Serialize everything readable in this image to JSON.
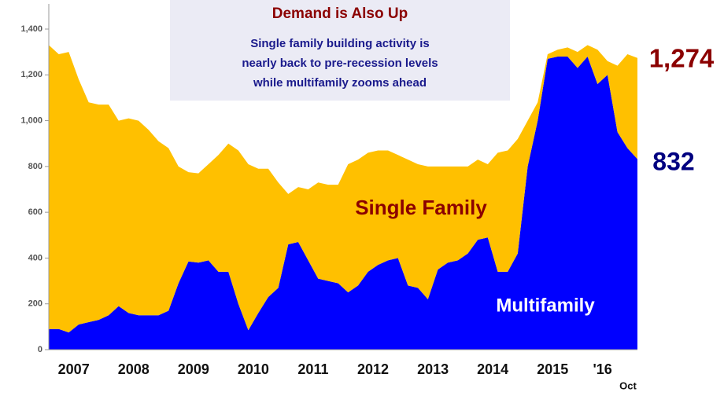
{
  "chart_data": {
    "type": "stacked_area",
    "title": "Demand is Also Up",
    "subtitle": [
      "Single family building activity is",
      "nearly back to pre-recession levels",
      "while multifamily zooms ahead"
    ],
    "categories": [
      null,
      null,
      null,
      "2007",
      null,
      null,
      null,
      null,
      null,
      "2008",
      null,
      null,
      null,
      null,
      null,
      "2009",
      null,
      null,
      null,
      null,
      null,
      "2010",
      null,
      null,
      null,
      null,
      null,
      "2011",
      null,
      null,
      null,
      null,
      null,
      "2012",
      null,
      null,
      null,
      null,
      null,
      "2013",
      null,
      null,
      null,
      null,
      null,
      "2014",
      null,
      null,
      null,
      null,
      null,
      "2015",
      null,
      null,
      null,
      null,
      "'16",
      null,
      null,
      null
    ],
    "x_note": "Oct",
    "series": [
      {
        "name": "Multifamily",
        "color": "#0000ff",
        "values": [
          90,
          90,
          75,
          110,
          120,
          130,
          150,
          190,
          160,
          150,
          150,
          150,
          170,
          290,
          385,
          380,
          390,
          340,
          340,
          200,
          85,
          160,
          230,
          270,
          460,
          470,
          390,
          310,
          300,
          290,
          250,
          280,
          340,
          370,
          390,
          400,
          280,
          270,
          220,
          350,
          380,
          390,
          420,
          480,
          490,
          340,
          340,
          420,
          800,
          1000,
          1270,
          1280,
          1280,
          1230,
          1280,
          1160,
          1200,
          950,
          880,
          832
        ]
      },
      {
        "name": "Single Family",
        "color": "#ffc000",
        "values": [
          1240,
          1200,
          1225,
          1070,
          960,
          940,
          920,
          810,
          850,
          850,
          810,
          760,
          710,
          510,
          390,
          390,
          420,
          510,
          560,
          670,
          725,
          630,
          560,
          460,
          220,
          240,
          310,
          420,
          420,
          430,
          560,
          550,
          520,
          500,
          480,
          450,
          550,
          540,
          580,
          450,
          420,
          410,
          380,
          350,
          320,
          520,
          530,
          500,
          200,
          80,
          20,
          30,
          40,
          70,
          50,
          150,
          60,
          290,
          410,
          442
        ]
      }
    ],
    "annotations": [
      "1,274",
      "832"
    ],
    "ylim": [
      0,
      1400
    ],
    "yticks": [
      0,
      200,
      400,
      600,
      800,
      {
        "value": 1000,
        "label": "1,000"
      },
      {
        "value": 1200,
        "label": "1,200"
      },
      {
        "value": 1400,
        "label": "1,400"
      }
    ],
    "grid": false
  }
}
